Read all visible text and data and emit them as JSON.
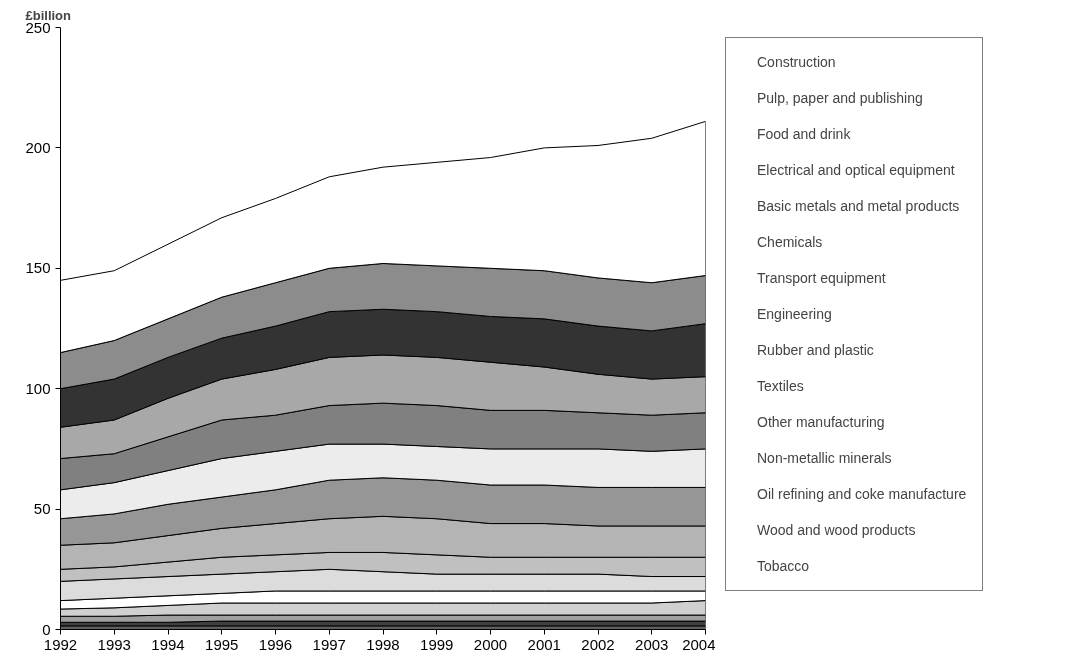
{
  "chart_data": {
    "type": "area",
    "stacked": true,
    "ylabel": "£billion",
    "x": [
      1992,
      1993,
      1994,
      1995,
      1996,
      1997,
      1998,
      1999,
      2000,
      2001,
      2002,
      2003,
      2004
    ],
    "xlim": [
      1992,
      2004
    ],
    "xticks": [
      1992,
      1993,
      1994,
      1995,
      1996,
      1997,
      1998,
      1999,
      2000,
      2001,
      2002,
      2003,
      2004
    ],
    "ylim": [
      0,
      250
    ],
    "yticks": [
      0,
      50,
      100,
      150,
      200,
      250
    ],
    "grid": false,
    "legend": "right",
    "series": [
      {
        "name": "Tobacco",
        "color": "#606060",
        "values": [
          1.5,
          1.5,
          1.5,
          1.5,
          1.5,
          1.5,
          1.5,
          1.5,
          1.5,
          1.5,
          1.5,
          1.5,
          1.5
        ]
      },
      {
        "name": "Wood and wood products",
        "color": "#404040",
        "values": [
          1.5,
          1.5,
          1.5,
          2,
          2,
          2,
          2,
          2,
          2,
          2,
          2,
          2,
          2
        ]
      },
      {
        "name": "Oil refining and coke manufacture",
        "color": "#a0a0a0",
        "values": [
          2.5,
          2.5,
          3,
          2.5,
          2.5,
          2.5,
          2.5,
          2.5,
          2.5,
          2.5,
          2.5,
          2.5,
          2.5
        ]
      },
      {
        "name": "Non-metallic minerals",
        "color": "#d0d0d0",
        "values": [
          3,
          3.5,
          4,
          5,
          5,
          5,
          5,
          5,
          5,
          5,
          5,
          5,
          6
        ]
      },
      {
        "name": "Other manufacturing",
        "color": "#ffffff",
        "values": [
          3.5,
          4,
          4,
          4,
          5,
          5,
          5,
          5,
          5,
          5,
          5,
          5,
          4
        ]
      },
      {
        "name": "Textiles",
        "color": "#dcdcdc",
        "values": [
          8,
          8,
          8,
          8,
          8,
          9,
          8,
          7,
          7,
          7,
          7,
          6,
          6
        ]
      },
      {
        "name": "Rubber and plastic",
        "color": "#c0c0c0",
        "values": [
          5,
          5,
          6,
          7,
          7,
          7,
          8,
          8,
          7,
          7,
          7,
          8,
          8
        ]
      },
      {
        "name": "Engineering",
        "color": "#b4b4b4",
        "values": [
          10,
          10,
          11,
          12,
          13,
          14,
          15,
          15,
          14,
          14,
          13,
          13,
          13
        ]
      },
      {
        "name": "Transport equipment",
        "color": "#969696",
        "values": [
          11,
          12,
          13,
          13,
          14,
          16,
          16,
          16,
          16,
          16,
          16,
          16,
          16
        ]
      },
      {
        "name": "Chemicals",
        "color": "#ececec",
        "values": [
          12,
          13,
          14,
          16,
          16,
          15,
          14,
          14,
          15,
          15,
          16,
          15,
          16
        ]
      },
      {
        "name": "Basic metals and metal products",
        "color": "#808080",
        "values": [
          13,
          12,
          14,
          16,
          15,
          16,
          17,
          17,
          16,
          16,
          15,
          15,
          15
        ]
      },
      {
        "name": "Electrical and optical equipment",
        "color": "#a8a8a8",
        "values": [
          13,
          14,
          16,
          17,
          19,
          20,
          20,
          20,
          20,
          18,
          16,
          15,
          15
        ]
      },
      {
        "name": "Food and drink",
        "color": "#333333",
        "values": [
          16,
          17,
          17,
          17,
          18,
          19,
          19,
          19,
          19,
          20,
          20,
          20,
          22
        ]
      },
      {
        "name": "Pulp, paper and publishing",
        "color": "#8c8c8c",
        "values": [
          15,
          16,
          16,
          17,
          18,
          18,
          19,
          19,
          20,
          20,
          20,
          20,
          20
        ]
      },
      {
        "name": "Construction",
        "color": "#ffffff",
        "values": [
          30,
          29,
          31,
          33,
          35,
          38,
          40,
          43,
          46,
          51,
          55,
          60,
          64
        ]
      }
    ]
  }
}
